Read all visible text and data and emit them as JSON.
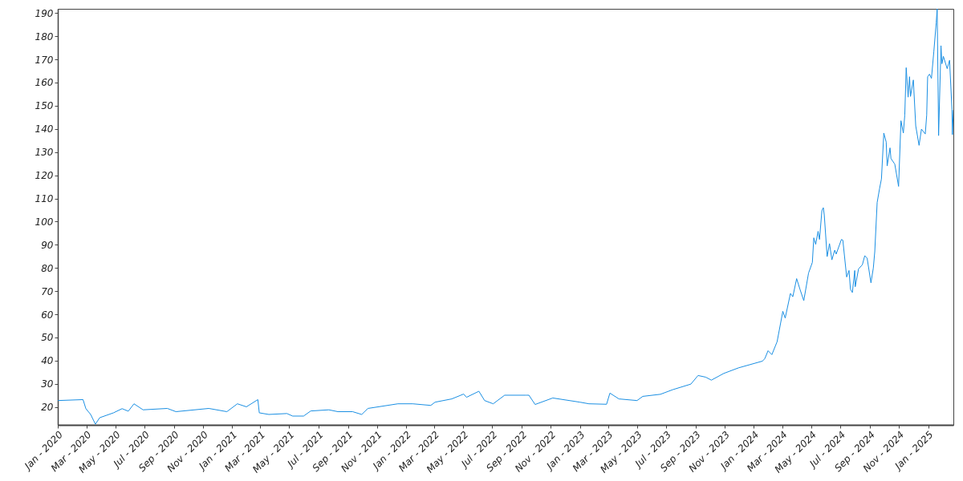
{
  "chart_data": {
    "type": "line",
    "x": [
      "2020-01-02",
      "2020-02-23",
      "2020-02-29",
      "2020-03-10",
      "2020-03-20",
      "2020-03-29",
      "2020-04-27",
      "2020-05-15",
      "2020-05-28",
      "2020-06-09",
      "2020-06-28",
      "2020-08-18",
      "2020-09-05",
      "2020-11-13",
      "2020-12-21",
      "2021-01-12",
      "2021-01-31",
      "2021-02-24",
      "2021-02-27",
      "2021-03-19",
      "2021-04-26",
      "2021-05-08",
      "2021-05-31",
      "2021-06-15",
      "2021-07-23",
      "2021-08-11",
      "2021-09-11",
      "2021-09-30",
      "2021-10-13",
      "2021-12-15",
      "2022-01-15",
      "2022-02-22",
      "2022-03-03",
      "2022-04-07",
      "2022-05-02",
      "2022-05-08",
      "2022-06-03",
      "2022-06-15",
      "2022-07-03",
      "2022-07-27",
      "2022-09-10",
      "2022-09-16",
      "2022-09-29",
      "2022-11-05",
      "2023-01-01",
      "2023-01-20",
      "2023-02-26",
      "2023-03-05",
      "2023-03-24",
      "2023-05-01",
      "2023-05-13",
      "2023-06-19",
      "2023-07-15",
      "2023-08-22",
      "2023-09-06",
      "2023-09-22",
      "2023-10-04",
      "2023-10-30",
      "2023-11-30",
      "2024-01-19",
      "2024-01-24",
      "2024-01-31",
      "2024-02-08",
      "2024-02-19",
      "2024-03-02",
      "2024-03-07",
      "2024-03-18",
      "2024-03-23",
      "2024-03-31",
      "2024-04-07",
      "2024-04-15",
      "2024-04-25",
      "2024-05-03",
      "2024-05-06",
      "2024-05-10",
      "2024-05-15",
      "2024-05-18",
      "2024-05-23",
      "2024-05-26",
      "2024-05-28",
      "2024-06-03",
      "2024-06-08",
      "2024-06-13",
      "2024-06-19",
      "2024-06-22",
      "2024-07-03",
      "2024-07-06",
      "2024-07-14",
      "2024-07-19",
      "2024-07-22",
      "2024-07-26",
      "2024-07-31",
      "2024-08-01",
      "2024-08-08",
      "2024-08-16",
      "2024-08-21",
      "2024-08-26",
      "2024-09-03",
      "2024-09-08",
      "2024-09-11",
      "2024-09-16",
      "2024-09-21",
      "2024-09-25",
      "2024-09-30",
      "2024-10-05",
      "2024-10-07",
      "2024-10-13",
      "2024-10-15",
      "2024-10-23",
      "2024-10-31",
      "2024-11-05",
      "2024-11-10",
      "2024-11-13",
      "2024-11-16",
      "2024-11-20",
      "2024-11-23",
      "2024-11-25",
      "2024-12-01",
      "2024-12-06",
      "2024-12-13",
      "2024-12-18",
      "2024-12-26",
      "2024-12-29",
      "2024-12-31",
      "2025-01-04",
      "2025-01-08",
      "2025-01-13",
      "2025-01-18",
      "2025-01-20",
      "2025-01-23",
      "2025-01-28",
      "2025-01-30",
      "2025-02-02",
      "2025-02-10",
      "2025-02-15",
      "2025-02-20",
      "2025-02-21",
      "2025-02-23"
    ],
    "series": [
      {
        "color": "#1a8fe3",
        "values": [
          22.8,
          23.2,
          19.3,
          16.8,
          12.6,
          15.4,
          17.5,
          19.3,
          18.2,
          21.4,
          18.8,
          19.4,
          18,
          19.4,
          18,
          21.4,
          20.1,
          23.2,
          17.5,
          16.8,
          17.2,
          16.1,
          16.1,
          18.3,
          18.8,
          18,
          18,
          16.8,
          19.4,
          21.4,
          21.4,
          20.7,
          22.1,
          23.5,
          25.6,
          24.2,
          26.8,
          22.8,
          21.4,
          25.1,
          25.1,
          25.1,
          21.1,
          23.9,
          22.1,
          21.4,
          21.2,
          26,
          23.5,
          22.8,
          24.6,
          25.5,
          27.5,
          29.9,
          33.6,
          32.9,
          31.6,
          34.5,
          36.9,
          39.8,
          40.8,
          44.3,
          42.6,
          48.2,
          61.3,
          58.4,
          69,
          67.6,
          75.4,
          70.8,
          65.9,
          77.8,
          82.4,
          93,
          90.2,
          95.8,
          92.3,
          104.7,
          106,
          102.9,
          84.9,
          90.5,
          83.5,
          87.7,
          86,
          92.3,
          92,
          76.1,
          78.9,
          70.8,
          69.4,
          78.9,
          71.9,
          79.6,
          81.4,
          85.3,
          84.2,
          73.6,
          80,
          87,
          108.2,
          114.2,
          118.4,
          138.2,
          134.3,
          124,
          131.8,
          127.2,
          124.8,
          115.2,
          143.5,
          138.2,
          145.9,
          166.4,
          153.7,
          162.5,
          154,
          161.1,
          141.3,
          132.9,
          139.9,
          137.8,
          145.9,
          162.5,
          163.6,
          161.8,
          173.4,
          185.8,
          191.8,
          137.1,
          175.9,
          168.1,
          171.3,
          166,
          169.6,
          148.4,
          137.5,
          148
        ]
      }
    ],
    "xlim": [
      "2020-01-01",
      "2025-02-23"
    ],
    "xticks": [
      {
        "value": "2020-01-01",
        "label": "Jan - 2020"
      },
      {
        "value": "2020-03-01",
        "label": "Mar - 2020"
      },
      {
        "value": "2020-05-01",
        "label": "May - 2020"
      },
      {
        "value": "2020-07-01",
        "label": "Jul - 2020"
      },
      {
        "value": "2020-09-01",
        "label": "Sep - 2020"
      },
      {
        "value": "2020-11-01",
        "label": "Nov - 2020"
      },
      {
        "value": "2021-01-01",
        "label": "Jan - 2021"
      },
      {
        "value": "2021-03-01",
        "label": "Mar - 2021"
      },
      {
        "value": "2021-05-01",
        "label": "May - 2021"
      },
      {
        "value": "2021-07-01",
        "label": "Jul - 2021"
      },
      {
        "value": "2021-09-01",
        "label": "Sep - 2021"
      },
      {
        "value": "2021-11-01",
        "label": "Nov - 2021"
      },
      {
        "value": "2022-01-01",
        "label": "Jan - 2022"
      },
      {
        "value": "2022-03-01",
        "label": "Mar - 2022"
      },
      {
        "value": "2022-05-01",
        "label": "May - 2022"
      },
      {
        "value": "2022-07-01",
        "label": "Jul - 2022"
      },
      {
        "value": "2022-09-01",
        "label": "Sep - 2022"
      },
      {
        "value": "2022-11-01",
        "label": "Nov - 2022"
      },
      {
        "value": "2023-01-01",
        "label": "Jan - 2023"
      },
      {
        "value": "2023-03-01",
        "label": "Mar - 2023"
      },
      {
        "value": "2023-05-01",
        "label": "May - 2023"
      },
      {
        "value": "2023-07-01",
        "label": "Jul - 2023"
      },
      {
        "value": "2023-09-01",
        "label": "Sep - 2023"
      },
      {
        "value": "2023-11-01",
        "label": "Nov - 2023"
      },
      {
        "value": "2024-01-01",
        "label": "Jan - 2024"
      },
      {
        "value": "2024-03-01",
        "label": "Mar - 2024"
      },
      {
        "value": "2024-05-01",
        "label": "May - 2024"
      },
      {
        "value": "2024-07-01",
        "label": "Jul - 2024"
      },
      {
        "value": "2024-09-01",
        "label": "Sep - 2024"
      },
      {
        "value": "2024-11-01",
        "label": "Nov - 2024"
      },
      {
        "value": "2025-01-01",
        "label": "Jan - 2025"
      }
    ],
    "ylim": [
      12.3,
      191.8
    ],
    "yticks": [
      20,
      30,
      40,
      50,
      60,
      70,
      80,
      90,
      100,
      110,
      120,
      130,
      140,
      150,
      160,
      170,
      180,
      190
    ]
  }
}
